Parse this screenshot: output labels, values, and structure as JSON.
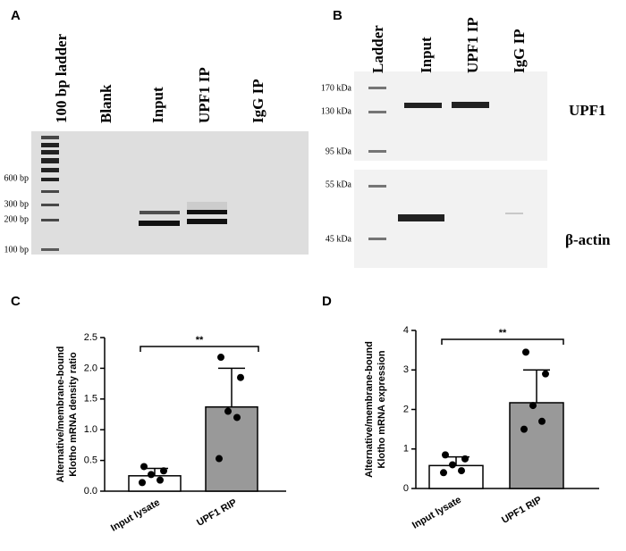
{
  "panel_labels": [
    "A",
    "B",
    "C",
    "D"
  ],
  "gel_a": {
    "lanes": [
      "100 bp ladder",
      "Blank",
      "Input",
      "UPF1 IP",
      "IgG IP"
    ],
    "markers": [
      "600 bp",
      "300 bp",
      "200 bp",
      "100 bp"
    ]
  },
  "blot_b": {
    "lanes": [
      "Ladder",
      "Input",
      "UPF1 IP",
      "IgG IP"
    ],
    "markers": [
      "170 kDa",
      "130 kDa",
      "95 kDa",
      "55 kDa",
      "45 kDa"
    ],
    "targets": [
      "UPF1",
      "β-actin"
    ]
  },
  "chart_data": [
    {
      "type": "bar",
      "ylabel": [
        "Alternative/membrane-bound",
        "Klotho mRNA density ratio"
      ],
      "categories": [
        "Input lysate",
        "UPF1 RIP"
      ],
      "values": [
        0.25,
        1.37
      ],
      "errors": [
        0.12,
        0.63
      ],
      "points": [
        [
          0.4,
          0.33,
          0.27,
          0.18,
          0.14
        ],
        [
          2.18,
          1.85,
          1.3,
          1.2,
          0.53
        ]
      ],
      "colors": [
        "#ffffff",
        "#999999"
      ],
      "annotation": "**",
      "ylim": [
        0,
        2.5
      ],
      "yticks": [
        {
          "value": 0,
          "label": "0.0"
        },
        0.5,
        {
          "value": 1,
          "label": "1.0"
        },
        1.5,
        {
          "value": 2,
          "label": "2.0"
        },
        2.5
      ]
    },
    {
      "type": "bar",
      "ylabel": [
        "Alternative/membrane-bound",
        "Klotho mRNA expression"
      ],
      "categories": [
        "Input lysate",
        "UPF1 RIP"
      ],
      "values": [
        0.58,
        2.17
      ],
      "errors": [
        0.22,
        0.83
      ],
      "points": [
        [
          0.85,
          0.75,
          0.6,
          0.45,
          0.4
        ],
        [
          3.45,
          2.9,
          2.1,
          1.7,
          1.5
        ]
      ],
      "colors": [
        "#ffffff",
        "#999999"
      ],
      "annotation": "**",
      "ylim": [
        0,
        4
      ],
      "yticks": [
        0,
        1,
        2,
        3,
        4
      ]
    }
  ]
}
